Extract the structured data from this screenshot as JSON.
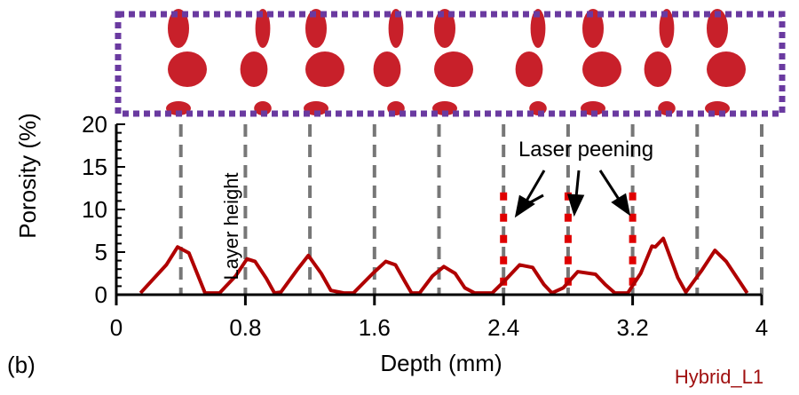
{
  "chart_data": {
    "type": "line",
    "panel_label": "(b)",
    "sample_label": "Hybrid_L1",
    "xlabel": "Depth (mm)",
    "ylabel": "Porosity (%)",
    "xlim": [
      0,
      4
    ],
    "ylim": [
      0,
      20
    ],
    "xticks": [
      "0",
      "0.8",
      "1.6",
      "2.4",
      "3.2",
      "4"
    ],
    "xtick_values": [
      0,
      0.8,
      1.6,
      2.4,
      3.2,
      4
    ],
    "yticks": [
      "0",
      "5",
      "10",
      "15",
      "20"
    ],
    "ytick_values": [
      0,
      5,
      10,
      15,
      20
    ],
    "layer_lines": [
      0.4,
      0.8,
      1.2,
      1.6,
      2.0,
      2.4,
      2.8,
      3.2,
      3.6,
      4.0
    ],
    "peening_lines": [
      2.4,
      2.8,
      3.2
    ],
    "peening_line_top": 12,
    "annotations": {
      "layer_height": "Layer height",
      "laser_peening": "Laser peening"
    },
    "series": [
      {
        "name": "Porosity",
        "color": "#b00000",
        "x": [
          0.15,
          0.31,
          0.38,
          0.45,
          0.55,
          0.64,
          0.74,
          0.81,
          0.86,
          0.93,
          0.98,
          1.02,
          1.12,
          1.19,
          1.27,
          1.33,
          1.41,
          1.47,
          1.59,
          1.67,
          1.73,
          1.79,
          1.83,
          1.88,
          1.96,
          2.03,
          2.1,
          2.16,
          2.22,
          2.33,
          2.4,
          2.5,
          2.58,
          2.65,
          2.7,
          2.77,
          2.86,
          2.97,
          3.03,
          3.09,
          3.17,
          3.25,
          3.32,
          3.34,
          3.39,
          3.48,
          3.53,
          3.63,
          3.71,
          3.78,
          3.91
        ],
        "y": [
          0.2,
          3.5,
          5.6,
          4.9,
          0.2,
          0.2,
          2.2,
          4.2,
          3.9,
          1.9,
          0.2,
          0.3,
          2.9,
          4.6,
          2.5,
          0.5,
          0.2,
          0.2,
          2.5,
          3.9,
          3.5,
          1.5,
          0.2,
          0.2,
          2.2,
          3.3,
          2.5,
          0.8,
          0.2,
          0.2,
          1.5,
          3.5,
          3.2,
          1.2,
          0.2,
          0.8,
          2.7,
          2.4,
          1.2,
          0.2,
          0.2,
          2.5,
          5.7,
          5.6,
          6.6,
          2.0,
          0.3,
          2.9,
          5.2,
          3.9,
          0.2
        ]
      }
    ],
    "colors": {
      "axis": "#000000",
      "layer_line": "#777777",
      "peening_line": "#e00000",
      "frame": "#6a3aa0",
      "pores": "#c8202a",
      "sample_label": "#a01010"
    }
  }
}
